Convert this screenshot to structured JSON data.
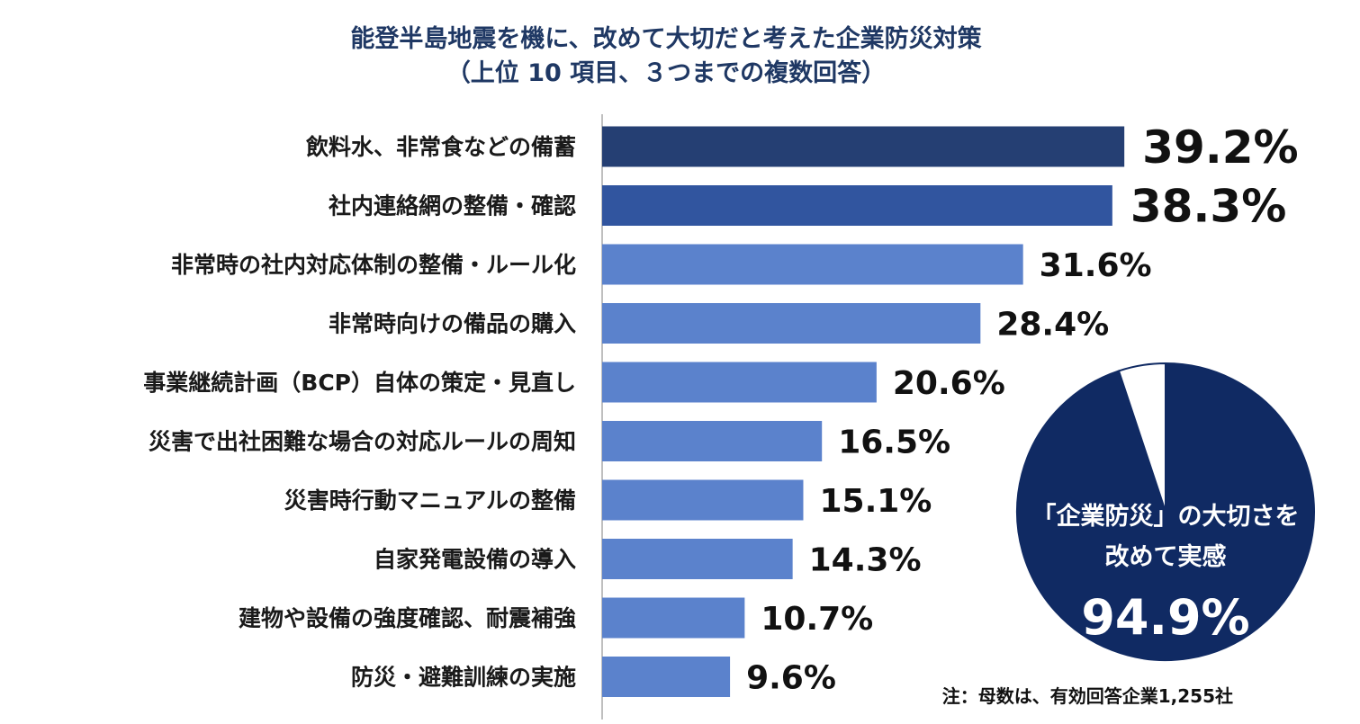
{
  "chart_data": [
    {
      "type": "bar",
      "orientation": "horizontal",
      "title": "能登半島地震を機に、改めて大切だと考えた企業防災対策",
      "subtitle": "（上位 10 項目、３つまでの複数回答）",
      "categories": [
        "飲料水、非常食などの備蓄",
        "社内連絡網の整備・確認",
        "非常時の社内対応体制の整備・ルール化",
        "非常時向けの備品の購入",
        "事業継続計画（BCP）自体の策定・見直し",
        "災害で出社困難な場合の対応ルールの周知",
        "災害時行動マニュアルの整備",
        "自家発電設備の導入",
        "建物や設備の強度確認、耐震補強",
        "防災・避難訓練の実施"
      ],
      "values": [
        39.2,
        38.3,
        31.6,
        28.4,
        20.6,
        16.5,
        15.1,
        14.3,
        10.7,
        9.6
      ],
      "value_labels": [
        "39.2%",
        "38.3%",
        "31.6%",
        "28.4%",
        "20.6%",
        "16.5%",
        "15.1%",
        "14.3%",
        "10.7%",
        "9.6%"
      ],
      "bar_colors": [
        "#253f73",
        "#31559f",
        "#5b82cc",
        "#5b82cc",
        "#5b82cc",
        "#5b82cc",
        "#5b82cc",
        "#5b82cc",
        "#5b82cc",
        "#5b82cc"
      ],
      "xlim": [
        0,
        40
      ],
      "grid": false,
      "note": "注：母数は、有効回答企業1,255社"
    },
    {
      "type": "pie",
      "values": [
        94.9,
        5.1
      ],
      "colors": [
        "#102a63",
        "#ffffff"
      ],
      "label_line1": "「企業防災」の大切さを",
      "label_line2": "改めて実感",
      "value_label": "94.9%"
    }
  ]
}
